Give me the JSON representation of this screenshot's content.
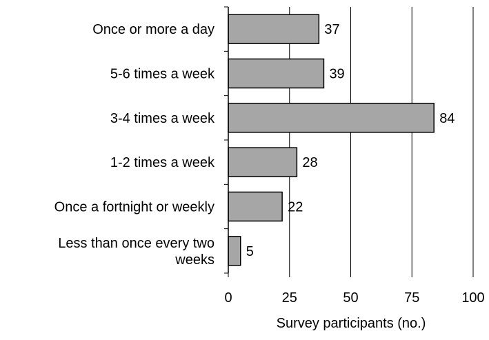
{
  "chart_data": {
    "type": "bar",
    "orientation": "horizontal",
    "categories": [
      [
        "Once or more a day"
      ],
      [
        "5-6 times a week"
      ],
      [
        "3-4 times a week"
      ],
      [
        "1-2 times a week"
      ],
      [
        "Once a fortnight or weekly"
      ],
      [
        "Less than once every two",
        "weeks"
      ]
    ],
    "values": [
      37,
      39,
      84,
      28,
      22,
      5
    ],
    "xlabel": "Survey participants (no.)",
    "xlim": [
      0,
      100
    ],
    "xticks": [
      0,
      25,
      50,
      75,
      100
    ],
    "grid": "vertical",
    "bar_color": "#a6a6a6",
    "bar_stroke": "#000000"
  }
}
